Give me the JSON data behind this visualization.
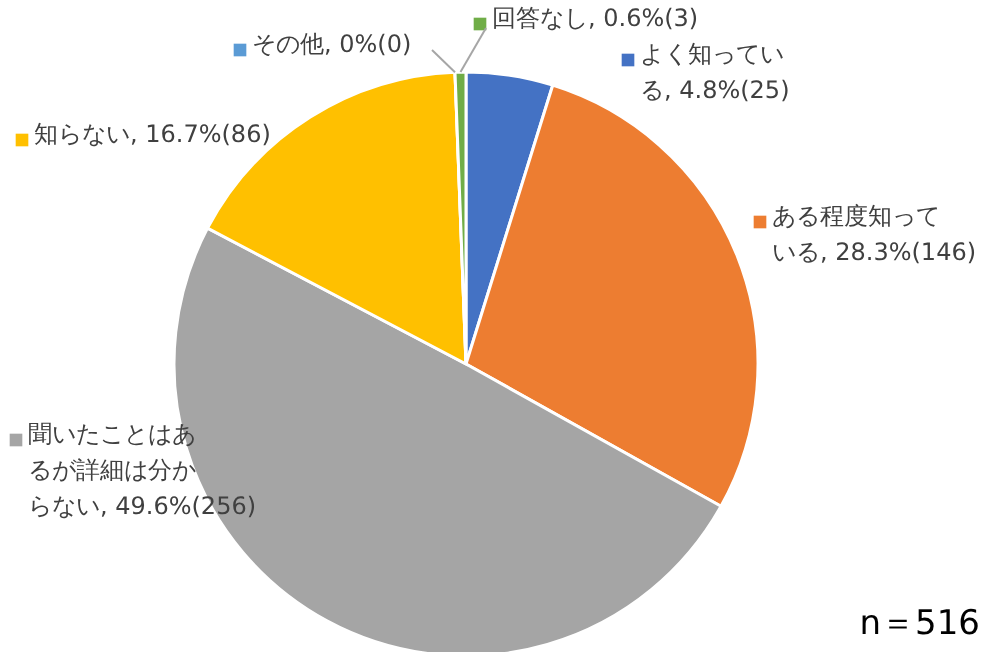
{
  "chart_data": {
    "type": "pie",
    "categories": [
      "よく知っている",
      "ある程度知っている",
      "聞いたことはあるが詳細は分からない",
      "知らない",
      "その他",
      "回答なし"
    ],
    "values": [
      4.8,
      28.3,
      49.6,
      16.7,
      0,
      0.6
    ],
    "value_labels": [
      "4.8%(25)",
      "28.3%(146)",
      "49.6%(256)",
      "16.7%(86)",
      "0%(0)",
      "0.6%(3)"
    ],
    "colors": [
      "#4472c4",
      "#ed7d31",
      "#a5a5a5",
      "#ffc000",
      "#5b9bd5",
      "#70ad47"
    ],
    "annotations": [
      "n＝516"
    ],
    "legend": "top"
  }
}
